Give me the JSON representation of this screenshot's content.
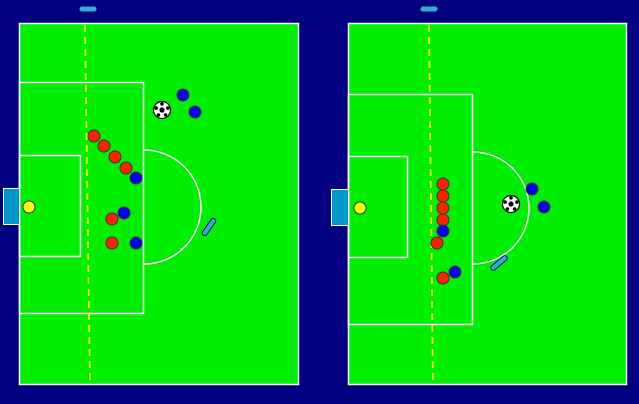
{
  "colors": {
    "background": "#000080",
    "field": "#00ee00",
    "field_lines": "#ffffff",
    "offside_line": "#ffee00",
    "goal": "#0099cc",
    "attacker": "#ff2200",
    "defender": "#0000ee",
    "goalkeeper": "#ffff00",
    "marker": "#33aadd"
  },
  "diagrams": [
    {
      "name": "left",
      "ball": "soccer-ball-icon",
      "attackers": 7,
      "defenders": 6,
      "goalkeepers": 1,
      "markers": 1,
      "offside_line": "dashed"
    },
    {
      "name": "right",
      "ball": "soccer-ball-icon",
      "attackers": 7,
      "defenders": 4,
      "goalkeepers": 1,
      "markers": 1,
      "offside_line": "dashed"
    }
  ]
}
